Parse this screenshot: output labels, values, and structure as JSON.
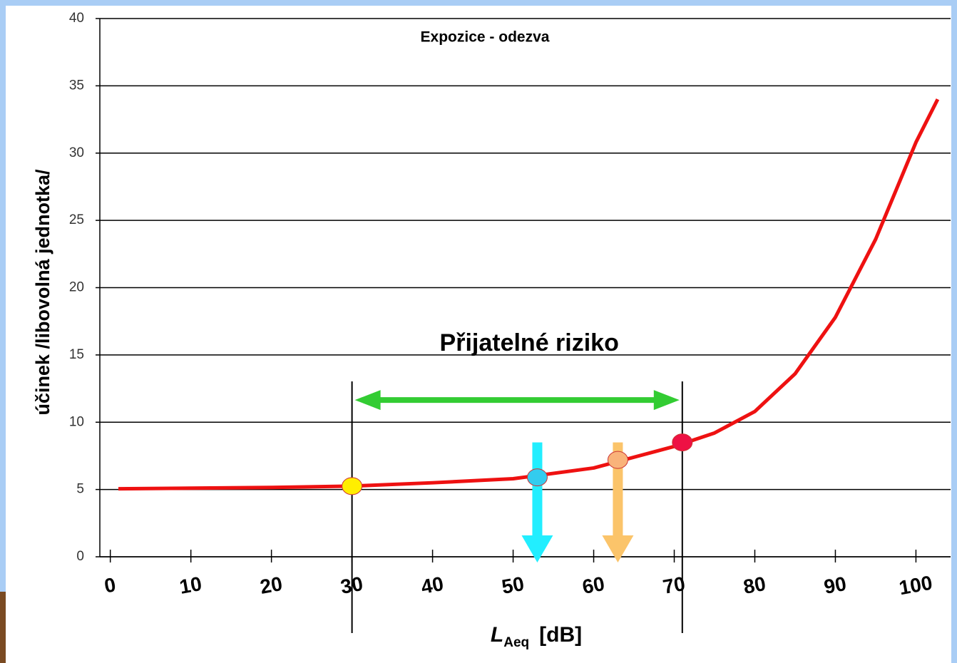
{
  "chart_data": {
    "type": "line",
    "title": "Expozice - odezva",
    "x_label": {
      "symbol": "L",
      "subscript": "Aeq",
      "unit": "[dB]"
    },
    "y_label": "účinek  /libovolná jednotka/",
    "x": [
      1,
      10,
      20,
      30,
      40,
      50,
      60,
      70,
      75,
      80,
      85,
      90,
      95,
      100,
      102.7
    ],
    "series": [
      {
        "color": "#ee1111",
        "values": [
          5.05,
          5.1,
          5.15,
          5.25,
          5.5,
          5.8,
          6.6,
          8.2,
          9.2,
          10.8,
          13.6,
          17.8,
          23.6,
          30.8,
          34
        ]
      }
    ],
    "xlim": [
      -1.3,
      104.3
    ],
    "xticks": [
      0,
      10,
      20,
      30,
      40,
      50,
      60,
      70,
      80,
      90,
      100
    ],
    "ylim": [
      0,
      40
    ],
    "yticks": [
      0,
      5,
      10,
      15,
      20,
      25,
      30,
      35,
      40
    ],
    "grid": true,
    "highlight_points": [
      {
        "x": 30,
        "y": 5.25,
        "color": "#ffee00"
      },
      {
        "x": 53,
        "y": 5.9,
        "color": "#33ccee"
      },
      {
        "x": 63,
        "y": 7.2,
        "color": "#f9b37a"
      },
      {
        "x": 71,
        "y": 8.5,
        "color": "#ee1144"
      }
    ],
    "arrows": [
      {
        "x": 53,
        "y_from": 8.5,
        "y_to": 0,
        "color": "#22eeff"
      },
      {
        "x": 63,
        "y_from": 8.5,
        "y_to": 0,
        "color": "#fbc46a"
      }
    ],
    "range": {
      "from": 30,
      "to": 71,
      "y": 11.65,
      "color": "#33cc33",
      "label": "Přijatelné riziko"
    }
  }
}
